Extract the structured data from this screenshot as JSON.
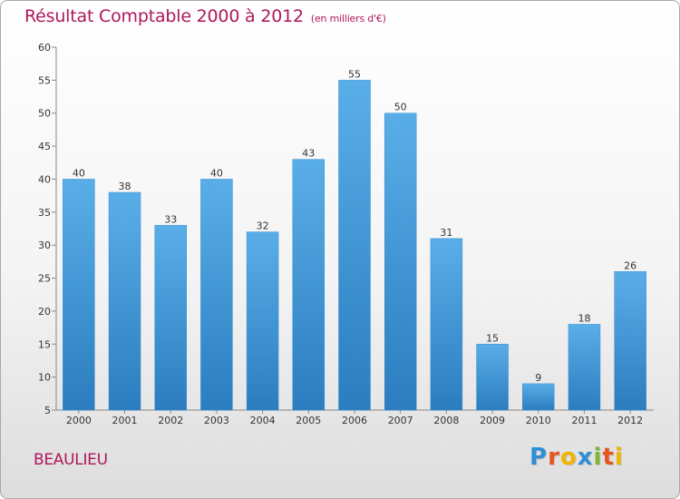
{
  "title": "Résultat Comptable 2000 à 2012",
  "subtitle": "(en milliers d'€)",
  "commune": "BEAULIEU",
  "logo": {
    "text": "Proxiti",
    "letters": [
      {
        "char": "P",
        "color": "#2f8fd6"
      },
      {
        "char": "r",
        "color": "#e8551e"
      },
      {
        "char": "o",
        "color": "#f0b400"
      },
      {
        "char": "x",
        "color": "#2f8fd6"
      },
      {
        "char": "i",
        "color": "#7cb82f"
      },
      {
        "char": "t",
        "color": "#e8551e"
      },
      {
        "char": "i",
        "color": "#f0b400"
      }
    ]
  },
  "colors": {
    "title": "#b0175c",
    "bar_light": "#5aaee8",
    "bar_dark": "#2b7dbf"
  },
  "chart_data": {
    "type": "bar",
    "title": "Résultat Comptable 2000 à 2012",
    "xlabel": "",
    "ylabel": "",
    "categories": [
      "2000",
      "2001",
      "2002",
      "2003",
      "2004",
      "2005",
      "2006",
      "2007",
      "2008",
      "2009",
      "2010",
      "2011",
      "2012"
    ],
    "values": [
      40,
      38,
      33,
      40,
      32,
      43,
      55,
      50,
      31,
      15,
      9,
      18,
      26
    ],
    "ylim": [
      5,
      60
    ],
    "yticks": [
      5,
      10,
      15,
      20,
      25,
      30,
      35,
      40,
      45,
      50,
      55,
      60
    ],
    "grid": false,
    "legend": "none"
  }
}
